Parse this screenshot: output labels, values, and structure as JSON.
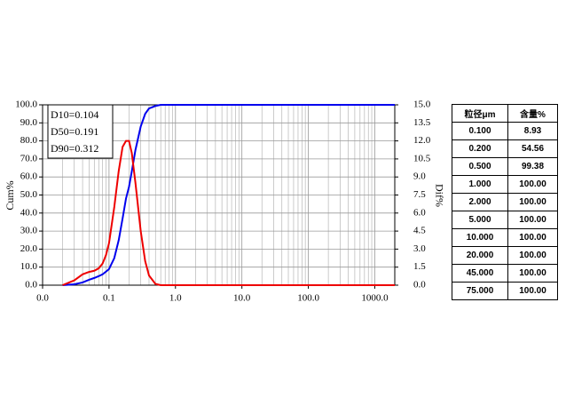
{
  "chart_data": {
    "type": "line",
    "xscale": "log",
    "y_label": "Cum%",
    "y2_label": "Dif%",
    "annotations": [
      "D10=0.104",
      "D50=0.191",
      "D90=0.312"
    ],
    "x": [
      0.02,
      0.03,
      0.04,
      0.05,
      0.06,
      0.07,
      0.08,
      0.09,
      0.1,
      0.12,
      0.14,
      0.16,
      0.18,
      0.2,
      0.22,
      0.25,
      0.3,
      0.35,
      0.4,
      0.5,
      0.6,
      0.8,
      1,
      2,
      5,
      10,
      100,
      1000,
      2000
    ],
    "series": [
      {
        "name": "Cum",
        "color": "#0000ee",
        "values": [
          0,
          0.5,
          1.5,
          3,
          4,
          5,
          6,
          7.5,
          8.93,
          15,
          25,
          37,
          48,
          54.56,
          63,
          75,
          88,
          95,
          98,
          99.38,
          100,
          100,
          100,
          100,
          100,
          100,
          100,
          100,
          100
        ]
      },
      {
        "name": "Dif",
        "color": "#ee0000",
        "axis": "y2",
        "values": [
          0,
          0.4,
          0.9,
          1.1,
          1.2,
          1.4,
          1.8,
          2.5,
          3.5,
          6.5,
          9.5,
          11.5,
          12,
          12,
          11,
          8.5,
          4.5,
          2,
          0.8,
          0.1,
          0,
          0,
          0,
          0,
          0,
          0,
          0,
          0,
          0
        ]
      }
    ],
    "xlim": [
      0.01,
      2000
    ],
    "xticks": [
      {
        "value": 0.01,
        "label": "0.0"
      },
      0.1,
      {
        "value": 1,
        "label": "1.0"
      },
      {
        "value": 10,
        "label": "10.0"
      },
      {
        "value": 100,
        "label": "100.0"
      },
      {
        "value": 1000,
        "label": "1000.0"
      }
    ],
    "ylim": [
      0,
      100
    ],
    "yticks": [
      {
        "value": 0,
        "label": "0.0"
      },
      {
        "value": 10,
        "label": "10.0"
      },
      {
        "value": 20,
        "label": "20.0"
      },
      {
        "value": 30,
        "label": "30.0"
      },
      {
        "value": 40,
        "label": "40.0"
      },
      {
        "value": 50,
        "label": "50.0"
      },
      {
        "value": 60,
        "label": "60.0"
      },
      {
        "value": 70,
        "label": "70.0"
      },
      {
        "value": 80,
        "label": "80.0"
      },
      {
        "value": 90,
        "label": "90.0"
      },
      {
        "value": 100,
        "label": "100.0"
      }
    ],
    "y2lim": [
      0,
      15
    ],
    "y2ticks": [
      {
        "value": 0,
        "label": "0.0"
      },
      1.5,
      {
        "value": 3,
        "label": "3.0"
      },
      4.5,
      {
        "value": 6,
        "label": "6.0"
      },
      7.5,
      {
        "value": 9,
        "label": "9.0"
      },
      10.5,
      {
        "value": 12,
        "label": "12.0"
      },
      13.5,
      {
        "value": 15,
        "label": "15.0"
      }
    ],
    "grid": true
  },
  "table": {
    "header": [
      "粒径μm",
      "含量%"
    ],
    "rows": [
      [
        "0.100",
        "8.93"
      ],
      [
        "0.200",
        "54.56"
      ],
      [
        "0.500",
        "99.38"
      ],
      [
        "1.000",
        "100.00"
      ],
      [
        "2.000",
        "100.00"
      ],
      [
        "5.000",
        "100.00"
      ],
      [
        "10.000",
        "100.00"
      ],
      [
        "20.000",
        "100.00"
      ],
      [
        "45.000",
        "100.00"
      ],
      [
        "75.000",
        "100.00"
      ]
    ]
  }
}
